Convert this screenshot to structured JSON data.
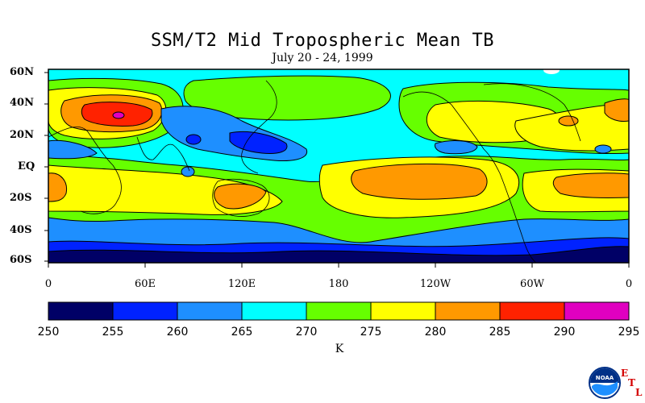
{
  "title": "SSM/T2 Mid Tropospheric Mean TB",
  "subtitle": "July 20 - 24, 1999",
  "lat_labels": [
    "60N",
    "40N",
    "20N",
    "EQ",
    "20S",
    "40S",
    "60S"
  ],
  "lon_labels": [
    "0",
    "60E",
    "120E",
    "180",
    "120W",
    "60W",
    "0"
  ],
  "colorbar": {
    "ticks": [
      "250",
      "255",
      "260",
      "265",
      "270",
      "275",
      "280",
      "285",
      "290",
      "295"
    ],
    "colors": [
      "#000066",
      "#0022ff",
      "#1e8fff",
      "#00ffff",
      "#66ff00",
      "#ffff00",
      "#ff9900",
      "#ff2200",
      "#e000c0"
    ],
    "unit": "K"
  },
  "logo": {
    "text": "NOAA",
    "letters": [
      "E",
      "T",
      "L"
    ],
    "icon": "noaa-logo-icon"
  },
  "colors": {
    "background": "#ffffff",
    "ocean_base": "#00ffff"
  }
}
